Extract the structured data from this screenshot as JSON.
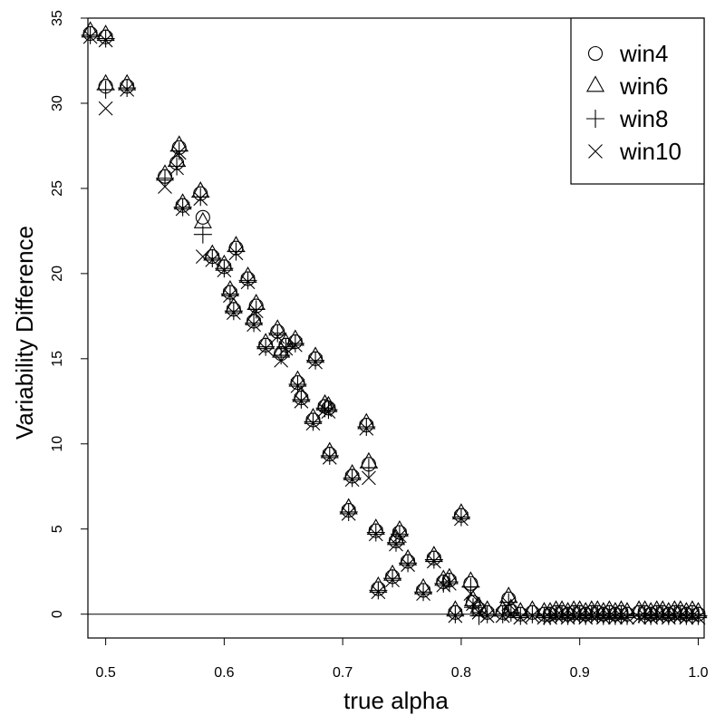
{
  "chart_data": {
    "type": "scatter",
    "xlabel": "true alpha",
    "ylabel": "Variability Difference",
    "xlim": [
      0.485,
      1.005
    ],
    "ylim": [
      -1.4,
      35.0
    ],
    "x_ticks": [
      0.5,
      0.6,
      0.7,
      0.8,
      0.9,
      1.0
    ],
    "x_tick_labels": [
      "0.5",
      "0.6",
      "0.7",
      "0.8",
      "0.9",
      "1.0"
    ],
    "y_ticks": [
      0,
      5,
      10,
      15,
      20,
      25,
      30,
      35
    ],
    "y_tick_labels": [
      "0",
      "5",
      "10",
      "15",
      "20",
      "25",
      "30",
      "35"
    ],
    "reference_line_y": 0,
    "grid": false,
    "legend_position": "top-right",
    "legend": [
      "win4",
      "win6",
      "win8",
      "win10"
    ],
    "series": [
      {
        "name": "win4",
        "marker": "circle",
        "x": [
          0.487,
          0.5,
          0.5,
          0.518,
          0.55,
          0.56,
          0.562,
          0.565,
          0.58,
          0.582,
          0.59,
          0.6,
          0.605,
          0.608,
          0.61,
          0.62,
          0.625,
          0.627,
          0.635,
          0.645,
          0.648,
          0.652,
          0.66,
          0.662,
          0.665,
          0.675,
          0.677,
          0.685,
          0.688,
          0.689,
          0.705,
          0.708,
          0.72,
          0.722,
          0.728,
          0.73,
          0.742,
          0.745,
          0.748,
          0.755,
          0.768,
          0.777,
          0.785,
          0.79,
          0.795,
          0.8,
          0.808,
          0.81,
          0.815,
          0.822,
          0.835,
          0.84,
          0.842,
          0.85,
          0.86,
          0.87,
          0.875,
          0.88,
          0.885,
          0.89,
          0.895,
          0.9,
          0.905,
          0.91,
          0.915,
          0.92,
          0.925,
          0.93,
          0.935,
          0.94,
          0.95,
          0.955,
          0.96,
          0.965,
          0.97,
          0.975,
          0.98,
          0.985,
          0.99,
          0.995,
          1.0
        ],
        "y": [
          34.1,
          33.9,
          31.0,
          31.0,
          25.7,
          26.5,
          27.4,
          24.0,
          24.7,
          23.3,
          21.0,
          20.4,
          18.9,
          17.9,
          21.5,
          19.7,
          17.2,
          18.1,
          15.8,
          16.6,
          15.3,
          15.8,
          16.0,
          13.6,
          12.7,
          11.4,
          15.0,
          12.2,
          12.1,
          9.4,
          6.1,
          8.1,
          11.1,
          8.8,
          4.9,
          1.5,
          2.2,
          4.3,
          4.8,
          3.1,
          1.4,
          3.3,
          1.9,
          2.0,
          0.1,
          5.8,
          1.8,
          0.7,
          0.3,
          0.1,
          0.1,
          0.9,
          0.2,
          0.0,
          0.1,
          0.0,
          0.0,
          0.1,
          0.1,
          0.0,
          0.1,
          0.1,
          0.0,
          0.1,
          0.1,
          0.0,
          0.1,
          0.0,
          0.1,
          0.0,
          0.1,
          0.1,
          0.0,
          0.1,
          0.1,
          0.0,
          0.1,
          0.1,
          0.0,
          0.1,
          0.0
        ]
      },
      {
        "name": "win6",
        "marker": "triangle",
        "x": [
          0.487,
          0.5,
          0.5,
          0.518,
          0.55,
          0.56,
          0.562,
          0.565,
          0.58,
          0.582,
          0.59,
          0.6,
          0.605,
          0.608,
          0.61,
          0.62,
          0.625,
          0.627,
          0.635,
          0.645,
          0.648,
          0.652,
          0.66,
          0.662,
          0.665,
          0.675,
          0.677,
          0.685,
          0.688,
          0.689,
          0.705,
          0.708,
          0.72,
          0.722,
          0.728,
          0.73,
          0.742,
          0.745,
          0.748,
          0.755,
          0.768,
          0.777,
          0.785,
          0.79,
          0.795,
          0.8,
          0.808,
          0.81,
          0.815,
          0.822,
          0.835,
          0.84,
          0.842,
          0.85,
          0.86,
          0.87,
          0.875,
          0.88,
          0.885,
          0.89,
          0.895,
          0.9,
          0.905,
          0.91,
          0.915,
          0.92,
          0.925,
          0.93,
          0.935,
          0.94,
          0.95,
          0.955,
          0.96,
          0.965,
          0.97,
          0.975,
          0.98,
          0.985,
          0.99,
          0.995,
          1.0
        ],
        "y": [
          34.2,
          34.0,
          31.1,
          31.1,
          25.8,
          26.6,
          27.5,
          24.1,
          24.8,
          23.0,
          21.1,
          20.5,
          19.0,
          18.0,
          21.6,
          19.8,
          17.3,
          18.2,
          15.9,
          16.7,
          15.4,
          15.9,
          16.1,
          13.7,
          12.8,
          11.5,
          15.1,
          12.3,
          12.2,
          9.5,
          6.2,
          8.2,
          11.2,
          8.9,
          5.0,
          1.6,
          2.3,
          4.4,
          4.9,
          3.2,
          1.5,
          3.4,
          2.0,
          2.1,
          0.2,
          5.9,
          1.9,
          0.8,
          0.4,
          0.2,
          0.2,
          1.0,
          0.3,
          0.1,
          0.2,
          0.1,
          0.1,
          0.2,
          0.2,
          0.1,
          0.2,
          0.2,
          0.1,
          0.2,
          0.2,
          0.1,
          0.2,
          0.1,
          0.2,
          0.1,
          0.2,
          0.2,
          0.1,
          0.2,
          0.2,
          0.1,
          0.2,
          0.2,
          0.1,
          0.2,
          0.1
        ]
      },
      {
        "name": "win8",
        "marker": "plus",
        "x": [
          0.487,
          0.5,
          0.5,
          0.518,
          0.55,
          0.56,
          0.562,
          0.565,
          0.58,
          0.582,
          0.59,
          0.6,
          0.605,
          0.608,
          0.61,
          0.62,
          0.625,
          0.627,
          0.635,
          0.645,
          0.648,
          0.652,
          0.66,
          0.662,
          0.665,
          0.675,
          0.677,
          0.685,
          0.688,
          0.689,
          0.705,
          0.708,
          0.72,
          0.722,
          0.728,
          0.73,
          0.742,
          0.745,
          0.748,
          0.755,
          0.768,
          0.777,
          0.785,
          0.79,
          0.795,
          0.8,
          0.808,
          0.81,
          0.815,
          0.822,
          0.835,
          0.84,
          0.842,
          0.85,
          0.86,
          0.87,
          0.875,
          0.88,
          0.885,
          0.89,
          0.895,
          0.9,
          0.905,
          0.91,
          0.915,
          0.92,
          0.925,
          0.93,
          0.935,
          0.94,
          0.95,
          0.955,
          0.96,
          0.965,
          0.97,
          0.975,
          0.98,
          0.985,
          0.99,
          0.995,
          1.0
        ],
        "y": [
          34.0,
          33.8,
          30.8,
          30.9,
          25.6,
          26.3,
          27.2,
          23.9,
          24.5,
          22.3,
          20.9,
          20.3,
          18.8,
          17.8,
          21.3,
          19.6,
          17.1,
          17.9,
          15.7,
          16.5,
          15.2,
          15.7,
          15.9,
          13.5,
          12.6,
          11.3,
          14.9,
          12.1,
          12.0,
          9.3,
          6.0,
          8.0,
          11.0,
          8.6,
          4.8,
          1.4,
          2.1,
          4.2,
          4.7,
          3.0,
          1.3,
          3.2,
          1.8,
          1.9,
          0.0,
          5.7,
          1.6,
          0.4,
          -0.1,
          0.0,
          0.0,
          0.7,
          0.1,
          -0.1,
          0.0,
          -0.1,
          -0.1,
          0.0,
          0.0,
          -0.1,
          0.0,
          0.0,
          -0.1,
          0.0,
          0.0,
          -0.1,
          0.0,
          -0.1,
          0.0,
          -0.1,
          0.0,
          0.0,
          -0.1,
          0.0,
          0.0,
          -0.1,
          0.0,
          0.0,
          -0.1,
          0.0,
          -0.1
        ]
      },
      {
        "name": "win10",
        "marker": "cross",
        "x": [
          0.487,
          0.5,
          0.5,
          0.518,
          0.55,
          0.56,
          0.562,
          0.565,
          0.58,
          0.582,
          0.59,
          0.6,
          0.605,
          0.608,
          0.61,
          0.62,
          0.625,
          0.627,
          0.635,
          0.645,
          0.648,
          0.652,
          0.66,
          0.662,
          0.665,
          0.675,
          0.677,
          0.685,
          0.688,
          0.689,
          0.705,
          0.708,
          0.72,
          0.722,
          0.728,
          0.73,
          0.742,
          0.745,
          0.748,
          0.755,
          0.768,
          0.777,
          0.785,
          0.79,
          0.795,
          0.8,
          0.808,
          0.81,
          0.815,
          0.822,
          0.835,
          0.84,
          0.842,
          0.85,
          0.86,
          0.87,
          0.875,
          0.88,
          0.885,
          0.89,
          0.895,
          0.9,
          0.905,
          0.91,
          0.915,
          0.92,
          0.925,
          0.93,
          0.935,
          0.94,
          0.95,
          0.955,
          0.96,
          0.965,
          0.97,
          0.975,
          0.98,
          0.985,
          0.99,
          0.995,
          1.0
        ],
        "y": [
          33.9,
          33.7,
          29.7,
          30.8,
          25.1,
          26.2,
          27.1,
          23.8,
          24.4,
          21.0,
          20.8,
          20.2,
          18.7,
          17.7,
          21.2,
          19.5,
          17.0,
          17.8,
          15.6,
          16.3,
          14.9,
          15.6,
          15.8,
          13.4,
          12.5,
          11.2,
          14.8,
          12.0,
          11.9,
          9.2,
          5.9,
          7.9,
          10.9,
          8.0,
          4.7,
          1.3,
          2.0,
          4.1,
          4.6,
          2.9,
          1.2,
          3.1,
          1.7,
          1.8,
          -0.1,
          5.6,
          1.2,
          0.6,
          0.1,
          -0.1,
          -0.1,
          0.6,
          0.0,
          -0.2,
          -0.1,
          -0.2,
          -0.2,
          -0.1,
          -0.1,
          -0.2,
          -0.1,
          -0.1,
          -0.2,
          -0.1,
          -0.1,
          -0.2,
          -0.1,
          -0.2,
          -0.1,
          -0.2,
          -0.2,
          -0.1,
          -0.2,
          -0.1,
          -0.1,
          -0.2,
          -0.1,
          -0.1,
          -0.2,
          -0.1,
          -0.2
        ]
      }
    ]
  }
}
